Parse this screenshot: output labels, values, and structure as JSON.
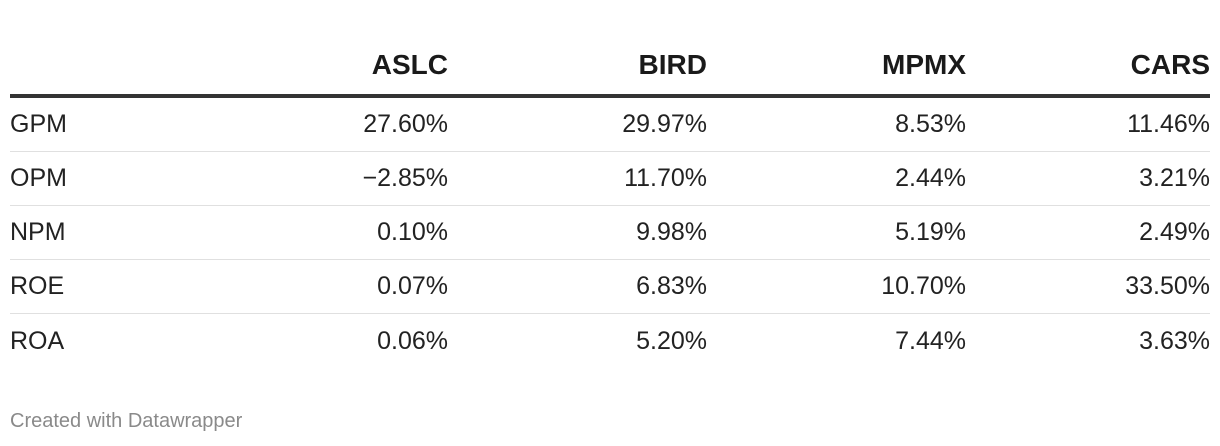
{
  "chart_data": {
    "type": "table",
    "columns": [
      "",
      "ASLC",
      "BIRD",
      "MPMX",
      "CARS"
    ],
    "rows": [
      {
        "label": "GPM",
        "values": [
          "27.60%",
          "29.97%",
          "8.53%",
          "11.46%"
        ]
      },
      {
        "label": "OPM",
        "values": [
          "−2.85%",
          "11.70%",
          "2.44%",
          "3.21%"
        ]
      },
      {
        "label": "NPM",
        "values": [
          "0.10%",
          "9.98%",
          "5.19%",
          "2.49%"
        ]
      },
      {
        "label": "ROE",
        "values": [
          "0.07%",
          "6.83%",
          "10.70%",
          "33.50%"
        ]
      },
      {
        "label": "ROA",
        "values": [
          "0.06%",
          "5.20%",
          "7.44%",
          "3.63%"
        ]
      }
    ]
  },
  "footer": {
    "credit": "Created with Datawrapper"
  }
}
